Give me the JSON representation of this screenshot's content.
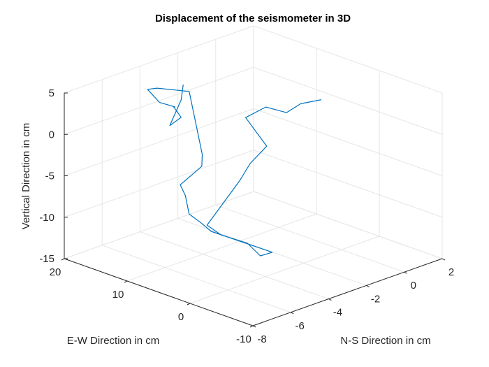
{
  "chart_data": {
    "type": "line",
    "title": "Displacement of the seismometer in 3D",
    "xlabel": "N-S Direction in cm",
    "ylabel": "E-W Direction in cm",
    "zlabel": "Vertical Direction in cm",
    "xlim": [
      -8,
      2
    ],
    "ylim": [
      -10,
      20
    ],
    "zlim": [
      -15,
      5
    ],
    "x_ticks": [
      "-8",
      "-6",
      "-4",
      "-2",
      "0",
      "2"
    ],
    "y_ticks": [
      "-10",
      "0",
      "10",
      "20"
    ],
    "z_ticks": [
      "-15",
      "-10",
      "-5",
      "0",
      "5"
    ],
    "grid": true,
    "colors": {
      "series": "#0072bd"
    },
    "series": [
      {
        "x": [
          -0.04,
          -1.14,
          -2.18,
          -3.35,
          -5.02,
          -5.23,
          -5.94,
          -6.84,
          -7.85,
          -6.31,
          -4.5,
          -2.88,
          -1.82,
          -2.13,
          -2.29,
          -2.7,
          -3.14,
          -3.58,
          -3.63,
          -3.88,
          -3.94,
          -5.31,
          -5.44,
          -4.07,
          -3.31,
          -3.12,
          -2.92,
          -3.25,
          -2.14,
          -2.14
        ],
        "y": [
          3.08,
          3.04,
          2.18,
          1.95,
          0.13,
          -3.86,
          -3.35,
          -4.44,
          -2.26,
          0.15,
          1.39,
          4.23,
          5.52,
          14.31,
          15.44,
          16.1,
          15.38,
          14.86,
          11.28,
          10.46,
          12.36,
          13.36,
          14.46,
          16.7,
          16.51,
          17.31,
          16.71,
          17.51,
          19.06,
          18.72
        ],
        "z": [
          2.31,
          2.72,
          2.73,
          4.41,
          4.98,
          2.78,
          1.11,
          0.1,
          -5.06,
          -8.15,
          -10.95,
          -14.55,
          -15.33,
          -14.93,
          -14.07,
          -12.85,
          -10.06,
          -8.28,
          -5.03,
          -3.16,
          3.96,
          5.2,
          4.86,
          1.58,
          0.46,
          0.1,
          -1.16,
          -2.11,
          -0.33,
          1.62
        ]
      }
    ]
  }
}
